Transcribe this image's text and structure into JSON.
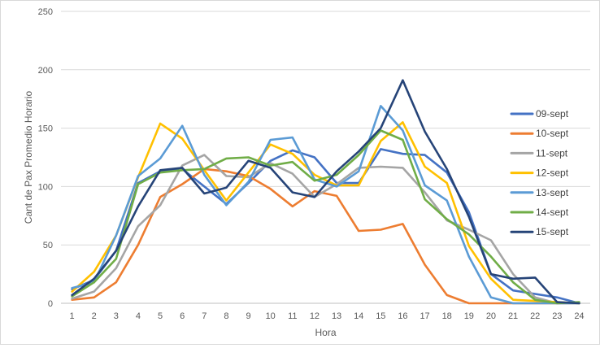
{
  "chart_data": {
    "type": "line",
    "title": "",
    "xlabel": "Hora",
    "ylabel": "Cant de Pax Promedio Horario",
    "ylim": [
      0,
      250
    ],
    "yticks": [
      0,
      50,
      100,
      150,
      200,
      250
    ],
    "grid": true,
    "legend_position": "right",
    "x": [
      1,
      2,
      3,
      4,
      5,
      6,
      7,
      8,
      9,
      10,
      11,
      12,
      13,
      14,
      15,
      16,
      17,
      18,
      19,
      20,
      21,
      22,
      23,
      24
    ],
    "series": [
      {
        "name": "09-sept",
        "color": "#4472C4",
        "values": [
          12,
          20,
          45,
          103,
          113,
          115,
          100,
          85,
          103,
          122,
          131,
          125,
          103,
          103,
          132,
          128,
          127,
          112,
          78,
          25,
          11,
          8,
          5,
          0
        ]
      },
      {
        "name": "10-sept",
        "color": "#ED7D31",
        "values": [
          3,
          5,
          18,
          50,
          91,
          102,
          115,
          113,
          109,
          98,
          83,
          96,
          92,
          62,
          63,
          68,
          33,
          7,
          0,
          0,
          0,
          0,
          0,
          0
        ]
      },
      {
        "name": "11-sept",
        "color": "#A5A5A5",
        "values": [
          4,
          10,
          30,
          66,
          84,
          118,
          127,
          109,
          108,
          120,
          111,
          91,
          102,
          116,
          117,
          116,
          95,
          71,
          63,
          54,
          25,
          5,
          0,
          0
        ]
      },
      {
        "name": "12-sept",
        "color": "#FFC000",
        "values": [
          10,
          27,
          58,
          108,
          154,
          141,
          114,
          88,
          112,
          136,
          128,
          110,
          101,
          101,
          139,
          155,
          117,
          103,
          49,
          21,
          3,
          2,
          1,
          0
        ]
      },
      {
        "name": "13-sept",
        "color": "#5B9BD5",
        "values": [
          13,
          18,
          58,
          109,
          124,
          152,
          110,
          84,
          104,
          140,
          142,
          106,
          100,
          113,
          169,
          148,
          101,
          88,
          40,
          5,
          0,
          0,
          0,
          0
        ]
      },
      {
        "name": "14-sept",
        "color": "#70AD47",
        "values": [
          6,
          18,
          38,
          102,
          112,
          114,
          115,
          124,
          125,
          118,
          121,
          105,
          110,
          127,
          148,
          140,
          89,
          72,
          59,
          40,
          18,
          3,
          0,
          1
        ]
      },
      {
        "name": "15-sept",
        "color": "#264478",
        "values": [
          7,
          21,
          45,
          83,
          114,
          116,
          94,
          99,
          122,
          116,
          95,
          91,
          113,
          130,
          150,
          191,
          147,
          115,
          74,
          25,
          21,
          22,
          1,
          0
        ]
      }
    ]
  }
}
